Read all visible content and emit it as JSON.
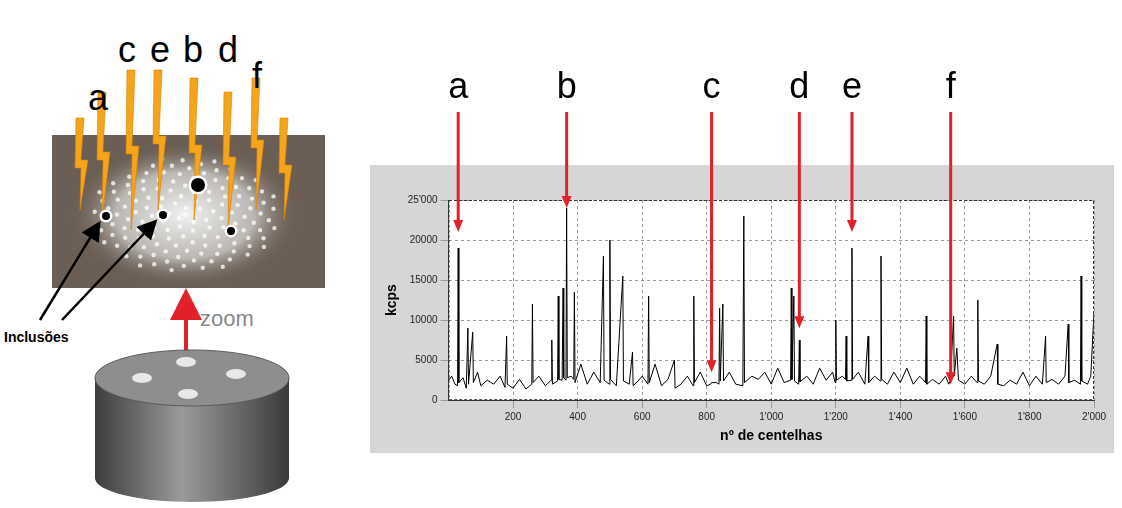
{
  "chart_data": {
    "type": "line",
    "xlabel": "nº de centelhas",
    "ylabel": "kcps",
    "color": "#000000",
    "x": [
      0,
      10,
      20,
      28,
      30,
      32,
      45,
      55,
      60,
      62,
      75,
      77,
      90,
      100,
      120,
      140,
      160,
      175,
      180,
      182,
      200,
      220,
      240,
      258,
      260,
      262,
      280,
      300,
      318,
      320,
      322,
      338,
      340,
      342,
      352,
      355,
      357,
      364,
      366,
      368,
      380,
      388,
      390,
      392,
      410,
      430,
      450,
      470,
      480,
      482,
      498,
      500,
      502,
      520,
      540,
      542,
      560,
      570,
      572,
      590,
      600,
      618,
      620,
      622,
      640,
      660,
      680,
      700,
      702,
      720,
      740,
      758,
      760,
      762,
      780,
      800,
      812,
      815,
      830,
      838,
      840,
      842,
      850,
      852,
      870,
      890,
      912,
      915,
      917,
      940,
      960,
      980,
      1000,
      1020,
      1040,
      1060,
      1062,
      1064,
      1070,
      1072,
      1085,
      1087,
      1089,
      1110,
      1130,
      1150,
      1170,
      1190,
      1198,
      1200,
      1202,
      1220,
      1230,
      1232,
      1234,
      1248,
      1250,
      1252,
      1270,
      1290,
      1300,
      1302,
      1320,
      1338,
      1340,
      1342,
      1360,
      1380,
      1400,
      1420,
      1440,
      1460,
      1478,
      1480,
      1482,
      1500,
      1520,
      1540,
      1550,
      1555,
      1565,
      1567,
      1575,
      1580,
      1600,
      1620,
      1638,
      1640,
      1642,
      1660,
      1680,
      1700,
      1702,
      1720,
      1740,
      1760,
      1780,
      1800,
      1820,
      1840,
      1850,
      1852,
      1870,
      1890,
      1910,
      1920,
      1922,
      1940,
      1958,
      1960,
      1962,
      1980,
      1990,
      2000
    ],
    "values": [
      2500,
      3000,
      2000,
      1800,
      19000,
      2200,
      2800,
      1500,
      9000,
      2000,
      8500,
      2200,
      3500,
      1800,
      2500,
      2000,
      3000,
      1600,
      8000,
      2000,
      1500,
      2600,
      1400,
      2000,
      12000,
      2200,
      3000,
      1800,
      2500,
      7500,
      2000,
      2400,
      13000,
      2600,
      2500,
      14000,
      2800,
      2500,
      24000,
      2800,
      3000,
      2600,
      13500,
      2200,
      4500,
      2000,
      3500,
      2200,
      18000,
      2500,
      2000,
      20000,
      2600,
      1800,
      15500,
      2400,
      2000,
      6000,
      1800,
      2500,
      3000,
      2000,
      13000,
      2200,
      4500,
      1800,
      2600,
      5000,
      1500,
      2000,
      3000,
      1800,
      13000,
      2200,
      3500,
      1800,
      2000,
      2200,
      2200,
      2000,
      11500,
      2400,
      12000,
      2400,
      3500,
      2000,
      1800,
      23000,
      2200,
      3000,
      2600,
      3500,
      2000,
      4000,
      2200,
      2500,
      14000,
      2600,
      13000,
      2400,
      2000,
      7500,
      2300,
      3000,
      2000,
      4000,
      2500,
      3500,
      2200,
      10000,
      2500,
      3000,
      2600,
      8000,
      2400,
      2500,
      19000,
      2600,
      3500,
      2000,
      8000,
      2200,
      3000,
      2400,
      18000,
      2600,
      2000,
      3500,
      2200,
      4000,
      2000,
      3000,
      2200,
      10500,
      2000,
      2600,
      2000,
      3000,
      2000,
      2500,
      10500,
      3000,
      6500,
      2500,
      2000,
      3000,
      2200,
      12500,
      2400,
      2000,
      3000,
      7000,
      2000,
      1800,
      2500,
      2000,
      3500,
      1800,
      3000,
      2000,
      8000,
      2200,
      2600,
      2000,
      3000,
      9500,
      2200,
      2500,
      2000,
      15500,
      2400,
      2000,
      3000,
      11000
    ],
    "xlim": [
      0,
      2000
    ],
    "xticks": [
      200,
      400,
      600,
      800,
      {
        "value": 1000,
        "label": "1'000"
      },
      {
        "value": 1200,
        "label": "1'200"
      },
      {
        "value": 1400,
        "label": "1'400"
      },
      {
        "value": 1600,
        "label": "1'600"
      },
      {
        "value": 1800,
        "label": "1'800"
      },
      {
        "value": 2000,
        "label": "2'000"
      }
    ],
    "ylim": [
      0,
      25000
    ],
    "yticks": [
      0,
      5000,
      10000,
      15000,
      20000,
      {
        "value": 25000,
        "label": "25'000"
      }
    ],
    "grid": true,
    "annotations": [
      {
        "text": "a",
        "x": 30,
        "y": 21000,
        "color": "#e0202a"
      },
      {
        "text": "b",
        "x": 366,
        "y": 24000,
        "color": "#e0202a"
      },
      {
        "text": "c",
        "x": 815,
        "y": 3500,
        "color": "#e0202a"
      },
      {
        "text": "d",
        "x": 1087,
        "y": 9000,
        "color": "#e0202a"
      },
      {
        "text": "e",
        "x": 1250,
        "y": 21000,
        "color": "#e0202a"
      },
      {
        "text": "f",
        "x": 1556,
        "y": 2000,
        "color": "#e0202a"
      }
    ]
  },
  "diagram": {
    "labels": [
      "a",
      "c",
      "e",
      "b",
      "d",
      "f"
    ],
    "inclusions_label": "Inclusões",
    "zoom_label": "zoom"
  }
}
